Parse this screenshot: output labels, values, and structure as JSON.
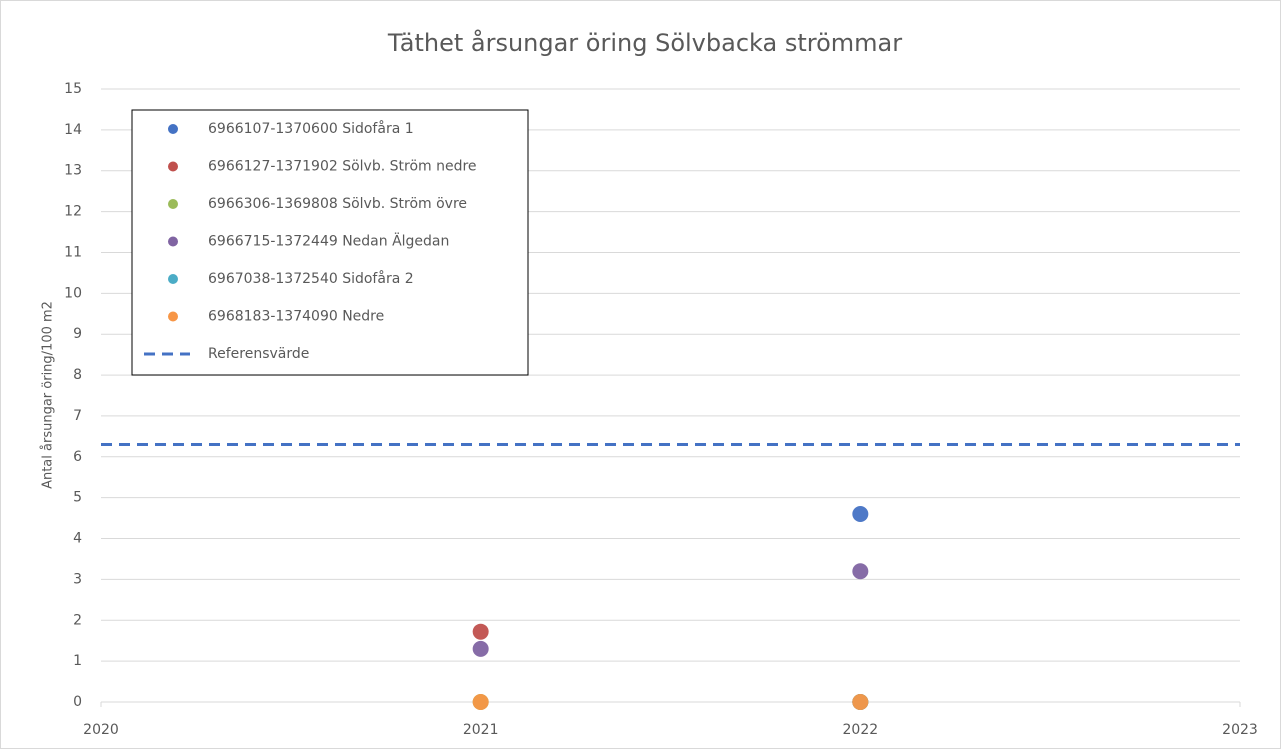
{
  "chart_data": {
    "type": "scatter",
    "title": "Täthet årsungar öring Sölvbacka strömmar",
    "y_label": "Antal årsungar öring/100 m2",
    "x": [
      2021,
      2022
    ],
    "series": [
      {
        "name": "6966107-1370600 Sidofåra 1",
        "color": "#4472c4",
        "values": [
          null,
          4.6
        ]
      },
      {
        "name": "6966127-1371902 Sölvb. Ström nedre",
        "color": "#c0504d",
        "values": [
          1.72,
          0
        ]
      },
      {
        "name": "6966306-1369808 Sölvb. Ström övre",
        "color": "#9bbb59",
        "values": [
          0,
          0
        ]
      },
      {
        "name": "6966715-1372449 Nedan Älgedan",
        "color": "#8064a2",
        "values": [
          1.3,
          3.2
        ]
      },
      {
        "name": "6967038-1372540 Sidofåra 2",
        "color": "#4bacc6",
        "values": [
          null,
          0
        ]
      },
      {
        "name": "6968183-1374090 Nedre",
        "color": "#f79646",
        "values": [
          0,
          0
        ]
      }
    ],
    "reference_lines": [
      {
        "name": "Referensvärde",
        "value": 6.3,
        "color": "#4472c4"
      }
    ],
    "xlim": [
      2020,
      2023
    ],
    "xticks": [
      2020,
      2021,
      2022,
      2023
    ],
    "ylim": [
      0,
      15
    ],
    "yticks": [
      0,
      1,
      2,
      3,
      4,
      5,
      6,
      7,
      8,
      9,
      10,
      11,
      12,
      13,
      14,
      15
    ],
    "grid": true,
    "legend": "upper left"
  }
}
